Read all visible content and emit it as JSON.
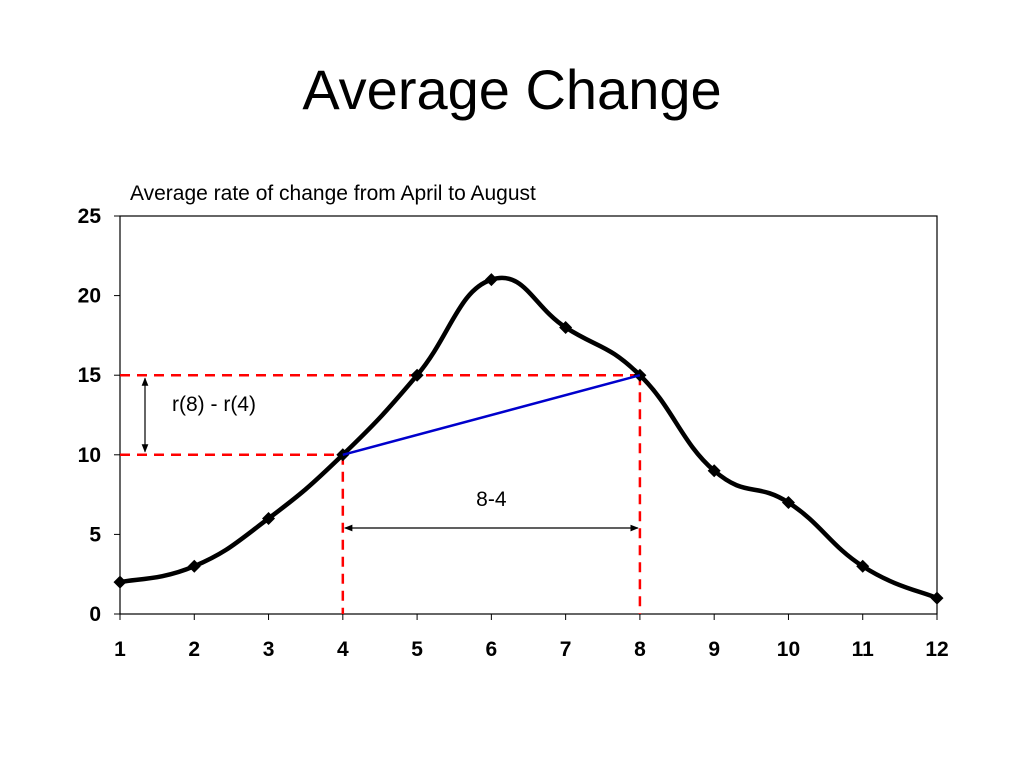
{
  "slide": {
    "title": "Average Change"
  },
  "colors": {
    "series_line": "#000000",
    "secant_line": "#0000cc",
    "guide_lines": "#ff0000",
    "arrows": "#000000"
  },
  "chart_data": {
    "type": "line",
    "title": "Average rate of change from April to August",
    "xlabel": "",
    "ylabel": "",
    "x": [
      1,
      2,
      3,
      4,
      5,
      6,
      7,
      8,
      9,
      10,
      11,
      12
    ],
    "series": [
      {
        "values": [
          2,
          3,
          6,
          10,
          15,
          21,
          18,
          15,
          9,
          7,
          3,
          1
        ],
        "marker": "diamond",
        "smooth": true
      }
    ],
    "xlim": [
      1,
      12
    ],
    "ylim": [
      0,
      25
    ],
    "xticks": [
      "1",
      "2",
      "3",
      "4",
      "5",
      "6",
      "7",
      "8",
      "9",
      "10",
      "11",
      "12"
    ],
    "yticks": [
      "0",
      "5",
      "10",
      "15",
      "20",
      "25"
    ],
    "grid": false,
    "legend": "none",
    "annotations": {
      "secant": {
        "from": [
          4,
          10
        ],
        "to": [
          8,
          15
        ]
      },
      "horizontal_guides": [
        10,
        15
      ],
      "vertical_guides": [
        4,
        8
      ],
      "vertical_arrow_label": "r(8) - r(4)",
      "horizontal_arrow_label": "8-4",
      "horizontal_arrow_y": 5.4
    }
  }
}
